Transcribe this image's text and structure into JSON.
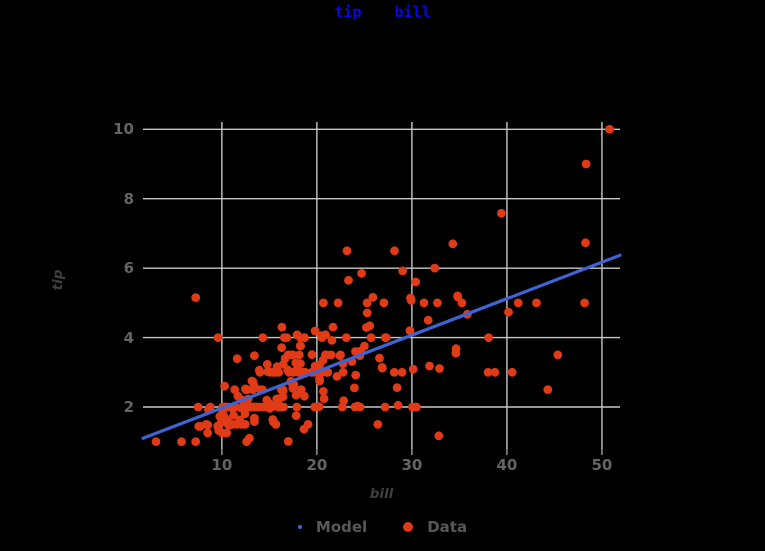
{
  "title": {
    "left": "tip",
    "right": "bill"
  },
  "axes": {
    "x_label": "bill",
    "y_label": "tip",
    "x_ticks": [
      10,
      20,
      30,
      40,
      50
    ],
    "y_ticks": [
      2,
      4,
      6,
      8,
      10
    ],
    "x_domain": [
      1.7,
      51.9
    ],
    "y_domain": [
      0.79,
      10.21
    ]
  },
  "legend": {
    "model_label": "Model",
    "data_label": "Data"
  },
  "colors": {
    "background": "#000000",
    "title": "#0707e8",
    "grid": "#c7c7c7",
    "tick_mark": "#9e9e9e",
    "tick_label": "#646464",
    "axis_label": "#404040",
    "legend_label": "#585858",
    "data_point": "#e03a17",
    "model_line": "#3e63d4"
  },
  "chart_data": {
    "type": "scatter",
    "title": "tip bill",
    "xlabel": "bill",
    "ylabel": "tip",
    "xlim": [
      1.7,
      51.9
    ],
    "ylim": [
      0.79,
      10.21
    ],
    "grid": true,
    "legend_position": "bottom",
    "series": [
      {
        "name": "Model",
        "type": "line",
        "color": "#3e63d4",
        "intercept": 0.92,
        "slope": 0.105
      },
      {
        "name": "Data",
        "type": "scatter",
        "color": "#e03a17",
        "points": [
          [
            16.99,
            1.01
          ],
          [
            10.34,
            1.66
          ],
          [
            21.01,
            3.5
          ],
          [
            23.68,
            3.31
          ],
          [
            24.59,
            3.61
          ],
          [
            25.29,
            4.71
          ],
          [
            8.77,
            2.0
          ],
          [
            26.88,
            3.12
          ],
          [
            15.04,
            1.96
          ],
          [
            14.78,
            3.23
          ],
          [
            10.27,
            1.71
          ],
          [
            35.26,
            5.0
          ],
          [
            15.42,
            1.57
          ],
          [
            18.43,
            3.0
          ],
          [
            14.83,
            3.02
          ],
          [
            21.58,
            3.92
          ],
          [
            10.33,
            1.67
          ],
          [
            16.29,
            3.71
          ],
          [
            16.97,
            3.5
          ],
          [
            20.65,
            3.35
          ],
          [
            17.92,
            4.08
          ],
          [
            20.29,
            2.75
          ],
          [
            15.77,
            2.23
          ],
          [
            39.42,
            7.58
          ],
          [
            19.82,
            3.18
          ],
          [
            17.81,
            2.34
          ],
          [
            13.37,
            2.0
          ],
          [
            12.69,
            2.0
          ],
          [
            21.7,
            4.3
          ],
          [
            19.65,
            3.0
          ],
          [
            9.55,
            1.45
          ],
          [
            18.35,
            2.5
          ],
          [
            15.06,
            3.0
          ],
          [
            20.69,
            2.45
          ],
          [
            17.78,
            3.27
          ],
          [
            24.06,
            3.6
          ],
          [
            16.31,
            2.0
          ],
          [
            16.93,
            3.07
          ],
          [
            18.69,
            2.31
          ],
          [
            31.27,
            5.0
          ],
          [
            16.04,
            2.24
          ],
          [
            17.46,
            2.54
          ],
          [
            13.94,
            3.06
          ],
          [
            9.68,
            1.32
          ],
          [
            30.4,
            5.6
          ],
          [
            18.29,
            3.0
          ],
          [
            22.23,
            5.0
          ],
          [
            32.4,
            6.0
          ],
          [
            28.55,
            2.05
          ],
          [
            18.04,
            3.0
          ],
          [
            12.54,
            2.5
          ],
          [
            10.29,
            2.6
          ],
          [
            34.81,
            5.2
          ],
          [
            9.94,
            1.56
          ],
          [
            25.56,
            4.34
          ],
          [
            19.49,
            3.51
          ],
          [
            38.01,
            3.0
          ],
          [
            26.41,
            1.5
          ],
          [
            11.24,
            1.76
          ],
          [
            48.27,
            6.73
          ],
          [
            20.29,
            3.21
          ],
          [
            13.81,
            2.0
          ],
          [
            11.02,
            1.98
          ],
          [
            18.29,
            3.76
          ],
          [
            17.59,
            2.64
          ],
          [
            20.08,
            3.15
          ],
          [
            16.45,
            2.47
          ],
          [
            3.07,
            1.0
          ],
          [
            20.23,
            2.01
          ],
          [
            15.01,
            2.09
          ],
          [
            12.02,
            1.97
          ],
          [
            17.07,
            3.0
          ],
          [
            26.86,
            3.14
          ],
          [
            25.28,
            5.0
          ],
          [
            14.73,
            2.2
          ],
          [
            10.51,
            1.25
          ],
          [
            17.92,
            3.08
          ],
          [
            27.2,
            4.0
          ],
          [
            22.76,
            3.0
          ],
          [
            17.29,
            2.71
          ],
          [
            19.44,
            3.0
          ],
          [
            16.66,
            3.4
          ],
          [
            10.07,
            1.83
          ],
          [
            32.68,
            5.0
          ],
          [
            15.98,
            2.03
          ],
          [
            34.83,
            5.17
          ],
          [
            13.03,
            2.0
          ],
          [
            18.28,
            4.0
          ],
          [
            24.71,
            5.85
          ],
          [
            21.16,
            3.0
          ],
          [
            28.97,
            3.0
          ],
          [
            22.49,
            3.5
          ],
          [
            5.75,
            1.0
          ],
          [
            16.32,
            4.3
          ],
          [
            22.75,
            3.25
          ],
          [
            40.17,
            4.73
          ],
          [
            27.28,
            4.0
          ],
          [
            12.03,
            1.5
          ],
          [
            21.01,
            3.0
          ],
          [
            12.46,
            1.5
          ],
          [
            11.35,
            2.5
          ],
          [
            15.38,
            3.0
          ],
          [
            44.3,
            2.5
          ],
          [
            22.42,
            3.48
          ],
          [
            20.92,
            4.08
          ],
          [
            15.36,
            1.64
          ],
          [
            20.49,
            4.06
          ],
          [
            25.21,
            4.29
          ],
          [
            18.24,
            3.76
          ],
          [
            14.31,
            4.0
          ],
          [
            14.0,
            3.0
          ],
          [
            7.25,
            1.0
          ],
          [
            38.07,
            4.0
          ],
          [
            23.95,
            2.55
          ],
          [
            25.71,
            4.0
          ],
          [
            17.31,
            3.5
          ],
          [
            29.93,
            5.07
          ],
          [
            10.65,
            1.5
          ],
          [
            12.43,
            1.8
          ],
          [
            24.08,
            2.92
          ],
          [
            11.69,
            2.31
          ],
          [
            13.42,
            1.68
          ],
          [
            14.26,
            2.5
          ],
          [
            15.95,
            2.0
          ],
          [
            12.48,
            2.52
          ],
          [
            29.8,
            4.2
          ],
          [
            8.52,
            1.48
          ],
          [
            14.52,
            2.0
          ],
          [
            11.38,
            2.0
          ],
          [
            22.82,
            2.18
          ],
          [
            19.08,
            1.5
          ],
          [
            20.27,
            2.83
          ],
          [
            11.17,
            1.5
          ],
          [
            12.26,
            2.0
          ],
          [
            18.26,
            3.25
          ],
          [
            8.51,
            1.25
          ],
          [
            10.33,
            2.0
          ],
          [
            14.15,
            2.0
          ],
          [
            16.0,
            2.0
          ],
          [
            13.16,
            2.75
          ],
          [
            17.47,
            3.5
          ],
          [
            34.3,
            6.7
          ],
          [
            41.19,
            5.0
          ],
          [
            27.05,
            5.0
          ],
          [
            16.43,
            2.3
          ],
          [
            8.35,
            1.5
          ],
          [
            18.64,
            1.36
          ],
          [
            11.87,
            1.63
          ],
          [
            9.78,
            1.73
          ],
          [
            7.51,
            2.0
          ],
          [
            14.07,
            2.5
          ],
          [
            13.13,
            2.0
          ],
          [
            17.26,
            2.74
          ],
          [
            24.55,
            2.0
          ],
          [
            19.77,
            2.0
          ],
          [
            29.85,
            5.14
          ],
          [
            48.17,
            5.0
          ],
          [
            25.0,
            3.75
          ],
          [
            13.39,
            2.61
          ],
          [
            16.49,
            2.0
          ],
          [
            21.5,
            3.5
          ],
          [
            12.66,
            2.5
          ],
          [
            16.21,
            2.0
          ],
          [
            13.81,
            2.0
          ],
          [
            17.51,
            3.0
          ],
          [
            24.52,
            3.48
          ],
          [
            20.76,
            2.24
          ],
          [
            31.71,
            4.5
          ],
          [
            10.59,
            1.61
          ],
          [
            10.63,
            2.0
          ],
          [
            50.81,
            10.0
          ],
          [
            15.81,
            3.16
          ],
          [
            7.25,
            5.15
          ],
          [
            31.85,
            3.18
          ],
          [
            16.82,
            4.0
          ],
          [
            32.9,
            3.11
          ],
          [
            17.89,
            2.0
          ],
          [
            14.48,
            2.0
          ],
          [
            9.6,
            4.0
          ],
          [
            34.63,
            3.55
          ],
          [
            34.65,
            3.68
          ],
          [
            23.33,
            5.65
          ],
          [
            45.35,
            3.5
          ],
          [
            23.17,
            6.5
          ],
          [
            40.55,
            3.0
          ],
          [
            20.69,
            5.0
          ],
          [
            20.9,
            3.5
          ],
          [
            30.46,
            2.0
          ],
          [
            18.15,
            3.5
          ],
          [
            23.1,
            4.0
          ],
          [
            15.69,
            1.5
          ],
          [
            19.81,
            4.19
          ],
          [
            28.44,
            2.56
          ],
          [
            15.48,
            2.02
          ],
          [
            16.58,
            4.0
          ],
          [
            7.56,
            1.44
          ],
          [
            10.34,
            2.0
          ],
          [
            43.11,
            5.0
          ],
          [
            13.0,
            2.0
          ],
          [
            13.51,
            2.0
          ],
          [
            18.71,
            4.0
          ],
          [
            12.74,
            2.01
          ],
          [
            13.0,
            2.0
          ],
          [
            16.4,
            2.5
          ],
          [
            20.53,
            4.0
          ],
          [
            16.47,
            3.23
          ],
          [
            26.59,
            3.41
          ],
          [
            38.73,
            3.0
          ],
          [
            24.27,
            2.03
          ],
          [
            12.76,
            2.23
          ],
          [
            30.06,
            2.0
          ],
          [
            25.89,
            5.16
          ],
          [
            48.33,
            9.0
          ],
          [
            13.27,
            2.5
          ],
          [
            28.17,
            6.5
          ],
          [
            12.9,
            1.1
          ],
          [
            28.15,
            3.0
          ],
          [
            11.59,
            1.5
          ],
          [
            7.74,
            1.44
          ],
          [
            30.14,
            3.09
          ],
          [
            12.16,
            2.2
          ],
          [
            13.42,
            3.48
          ],
          [
            8.58,
            1.92
          ],
          [
            15.98,
            3.0
          ],
          [
            13.42,
            1.58
          ],
          [
            16.27,
            2.5
          ],
          [
            10.09,
            2.0
          ],
          [
            20.45,
            3.0
          ],
          [
            13.28,
            2.72
          ],
          [
            22.12,
            2.88
          ],
          [
            24.01,
            2.0
          ],
          [
            15.69,
            3.0
          ],
          [
            11.61,
            3.39
          ],
          [
            10.77,
            1.47
          ],
          [
            15.53,
            3.0
          ],
          [
            10.07,
            1.25
          ],
          [
            12.6,
            1.0
          ],
          [
            32.83,
            1.17
          ],
          [
            35.83,
            4.67
          ],
          [
            29.03,
            5.92
          ],
          [
            27.18,
            2.0
          ],
          [
            22.67,
            2.0
          ],
          [
            17.82,
            1.75
          ],
          [
            18.78,
            3.0
          ]
        ]
      }
    ]
  }
}
